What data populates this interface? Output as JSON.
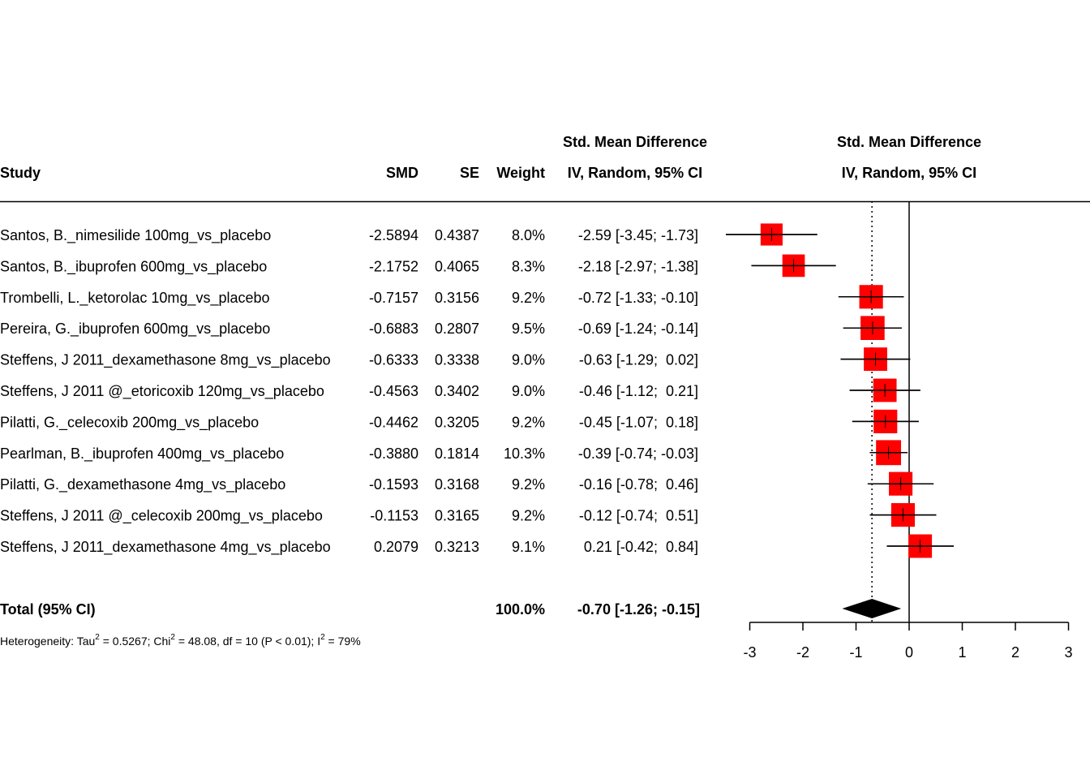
{
  "headers": {
    "study": "Study",
    "smd": "SMD",
    "se": "SE",
    "weight": "Weight",
    "ci_top": "Std. Mean Difference",
    "ci_bottom": "IV, Random, 95% CI",
    "plot_top": "Std. Mean Difference",
    "plot_bottom": "IV, Random, 95% CI"
  },
  "chart_data": {
    "type": "forest",
    "x_ticks": [
      -3,
      -2,
      -1,
      0,
      1,
      2,
      3
    ],
    "xlim": [
      -3,
      3
    ],
    "null_line": 0,
    "colors": {
      "box": "#ff0000",
      "diamond": "#000000",
      "line": "#000000"
    },
    "studies": [
      {
        "name": "Santos, B._nimesilide 100mg_vs_placebo",
        "smd": -2.5894,
        "smd_label": "-2.5894",
        "se": "0.4387",
        "weight": 8.0,
        "weight_label": "8.0%",
        "lower": -3.45,
        "upper": -1.73,
        "ci_label": "-2.59 [-3.45; -1.73]"
      },
      {
        "name": "Santos, B._ibuprofen 600mg_vs_placebo",
        "smd": -2.1752,
        "smd_label": "-2.1752",
        "se": "0.4065",
        "weight": 8.3,
        "weight_label": "8.3%",
        "lower": -2.97,
        "upper": -1.38,
        "ci_label": "-2.18 [-2.97; -1.38]"
      },
      {
        "name": "Trombelli, L._ketorolac 10mg_vs_placebo",
        "smd": -0.7157,
        "smd_label": "-0.7157",
        "se": "0.3156",
        "weight": 9.2,
        "weight_label": "9.2%",
        "lower": -1.33,
        "upper": -0.1,
        "ci_label": "-0.72 [-1.33; -0.10]"
      },
      {
        "name": "Pereira, G._ibuprofen 600mg_vs_placebo",
        "smd": -0.6883,
        "smd_label": "-0.6883",
        "se": "0.2807",
        "weight": 9.5,
        "weight_label": "9.5%",
        "lower": -1.24,
        "upper": -0.14,
        "ci_label": "-0.69 [-1.24; -0.14]"
      },
      {
        "name": "Steffens, J 2011_dexamethasone 8mg_vs_placebo",
        "smd": -0.6333,
        "smd_label": "-0.6333",
        "se": "0.3338",
        "weight": 9.0,
        "weight_label": "9.0%",
        "lower": -1.29,
        "upper": 0.02,
        "ci_label": "-0.63 [-1.29;  0.02]"
      },
      {
        "name": "Steffens, J 2011 @_etoricoxib 120mg_vs_placebo",
        "smd": -0.4563,
        "smd_label": "-0.4563",
        "se": "0.3402",
        "weight": 9.0,
        "weight_label": "9.0%",
        "lower": -1.12,
        "upper": 0.21,
        "ci_label": "-0.46 [-1.12;  0.21]"
      },
      {
        "name": "Pilatti, G._celecoxib 200mg_vs_placebo",
        "smd": -0.4462,
        "smd_label": "-0.4462",
        "se": "0.3205",
        "weight": 9.2,
        "weight_label": "9.2%",
        "lower": -1.07,
        "upper": 0.18,
        "ci_label": "-0.45 [-1.07;  0.18]"
      },
      {
        "name": "Pearlman, B._ibuprofen 400mg_vs_placebo",
        "smd": -0.388,
        "smd_label": "-0.3880",
        "se": "0.1814",
        "weight": 10.3,
        "weight_label": "10.3%",
        "lower": -0.74,
        "upper": -0.03,
        "ci_label": "-0.39 [-0.74; -0.03]"
      },
      {
        "name": "Pilatti, G._dexamethasone 4mg_vs_placebo",
        "smd": -0.1593,
        "smd_label": "-0.1593",
        "se": "0.3168",
        "weight": 9.2,
        "weight_label": "9.2%",
        "lower": -0.78,
        "upper": 0.46,
        "ci_label": "-0.16 [-0.78;  0.46]"
      },
      {
        "name": "Steffens, J 2011 @_celecoxib 200mg_vs_placebo",
        "smd": -0.1153,
        "smd_label": "-0.1153",
        "se": "0.3165",
        "weight": 9.2,
        "weight_label": "9.2%",
        "lower": -0.74,
        "upper": 0.51,
        "ci_label": "-0.12 [-0.74;  0.51]"
      },
      {
        "name": "Steffens, J 2011_dexamethasone 4mg_vs_placebo",
        "smd": 0.2079,
        "smd_label": "0.2079",
        "se": "0.3213",
        "weight": 9.1,
        "weight_label": "9.1%",
        "lower": -0.42,
        "upper": 0.84,
        "ci_label": "0.21 [-0.42;  0.84]"
      }
    ],
    "total": {
      "label": "Total (95% CI)",
      "weight_label": "100.0%",
      "estimate": -0.7,
      "lower": -1.26,
      "upper": -0.15,
      "ci_label": "-0.70 [-1.26; -0.15]"
    },
    "heterogeneity": {
      "prefix": "Heterogeneity: Tau",
      "tau2": " = 0.5267; Chi",
      "chi2": " = 48.08, df = 10 (P < 0.01); I",
      "i2": " = 79%",
      "sup": "2"
    }
  }
}
